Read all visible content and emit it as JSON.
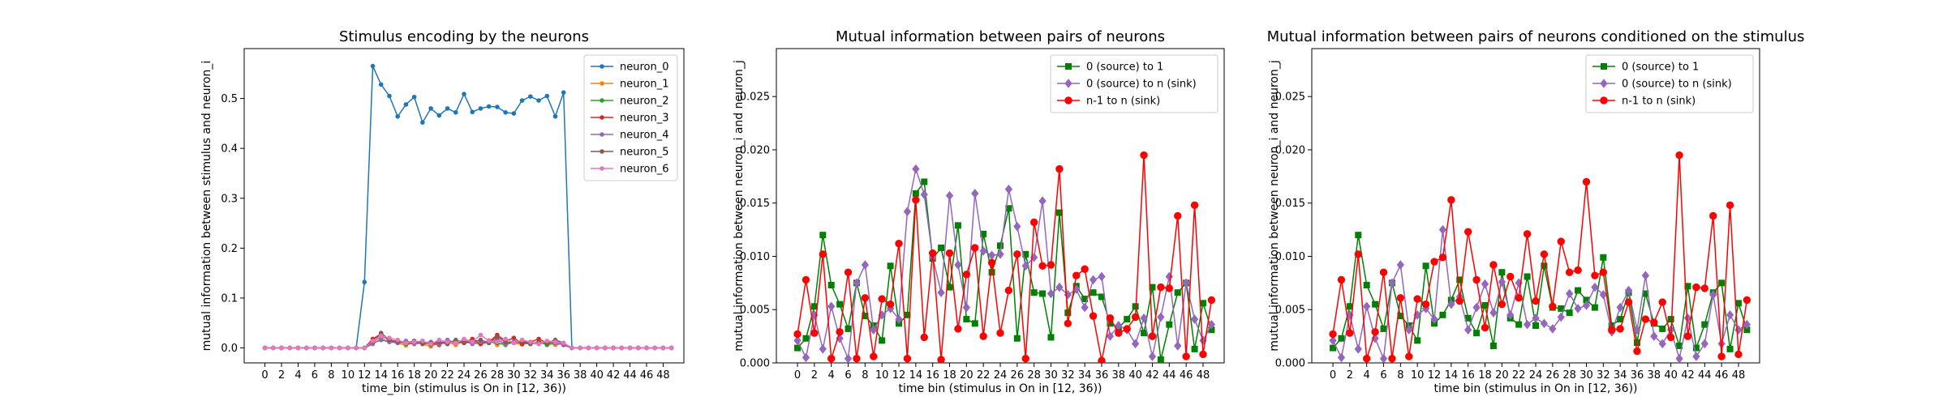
{
  "chart_data": [
    {
      "type": "line",
      "title": "Stimulus encoding by the neurons",
      "xlabel": "time_bin (stimulus is On in [12, 36))",
      "ylabel": "mutual information between stimulus and neuron_i",
      "xlim": [
        -2.5,
        50.5
      ],
      "ylim": [
        -0.03,
        0.6
      ],
      "x_ticks": [
        0,
        2,
        4,
        6,
        8,
        10,
        12,
        14,
        16,
        18,
        20,
        22,
        24,
        26,
        28,
        30,
        32,
        34,
        36,
        38,
        40,
        42,
        44,
        46,
        48
      ],
      "y_ticks": [
        0.0,
        0.1,
        0.2,
        0.3,
        0.4,
        0.5
      ],
      "y_tick_labels": [
        "0.0",
        "0.1",
        "0.2",
        "0.3",
        "0.4",
        "0.5"
      ],
      "x": [
        0,
        1,
        2,
        3,
        4,
        5,
        6,
        7,
        8,
        9,
        10,
        11,
        12,
        13,
        14,
        15,
        16,
        17,
        18,
        19,
        20,
        21,
        22,
        23,
        24,
        25,
        26,
        27,
        28,
        29,
        30,
        31,
        32,
        33,
        34,
        35,
        36,
        37,
        38,
        39,
        40,
        41,
        42,
        43,
        44,
        45,
        46,
        47,
        48,
        49
      ],
      "legend_position": "upper-right",
      "grid": false,
      "series": [
        {
          "name": "neuron_0",
          "color": "#1f77b4",
          "marker": "dot",
          "values": [
            0,
            0,
            0,
            0,
            0,
            0,
            0,
            0,
            0,
            0,
            0,
            0,
            0.132,
            0.565,
            0.528,
            0.505,
            0.464,
            0.488,
            0.503,
            0.452,
            0.48,
            0.466,
            0.48,
            0.472,
            0.509,
            0.473,
            0.48,
            0.484,
            0.483,
            0.472,
            0.47,
            0.496,
            0.504,
            0.496,
            0.505,
            0.464,
            0.512,
            0,
            0,
            0,
            0,
            0,
            0,
            0,
            0,
            0,
            0,
            0,
            0,
            0
          ]
        },
        {
          "name": "neuron_1",
          "color": "#ff7f0e",
          "marker": "dot",
          "values": [
            0,
            0,
            0,
            0,
            0,
            0,
            0,
            0,
            0,
            0,
            0,
            0,
            0,
            0.012,
            0.022,
            0.018,
            0.01,
            0.005,
            0.012,
            0.008,
            0.003,
            0.01,
            0.012,
            0.006,
            0.014,
            0.01,
            0.008,
            0.015,
            0.006,
            0.012,
            0.01,
            0.007,
            0.012,
            0.008,
            0.011,
            0.006,
            0.009,
            0,
            0,
            0,
            0,
            0,
            0,
            0,
            0,
            0,
            0,
            0,
            0,
            0
          ]
        },
        {
          "name": "neuron_2",
          "color": "#2ca02c",
          "marker": "dot",
          "values": [
            0,
            0,
            0,
            0,
            0,
            0,
            0,
            0,
            0,
            0,
            0,
            0,
            0,
            0.01,
            0.016,
            0.012,
            0.015,
            0.008,
            0.01,
            0.014,
            0.006,
            0.012,
            0.008,
            0.016,
            0.01,
            0.012,
            0.008,
            0.014,
            0.01,
            0.006,
            0.012,
            0.01,
            0.008,
            0.012,
            0.006,
            0.01,
            0.008,
            0,
            0,
            0,
            0,
            0,
            0,
            0,
            0,
            0,
            0,
            0,
            0,
            0
          ]
        },
        {
          "name": "neuron_3",
          "color": "#d62728",
          "marker": "dot",
          "values": [
            0,
            0,
            0,
            0,
            0,
            0,
            0,
            0,
            0,
            0,
            0,
            0,
            0,
            0.018,
            0.028,
            0.014,
            0.012,
            0.01,
            0.008,
            0.012,
            0.01,
            0.006,
            0.014,
            0.012,
            0.01,
            0.018,
            0.008,
            0.012,
            0.026,
            0.014,
            0.02,
            0.008,
            0.012,
            0.018,
            0.01,
            0.012,
            0.006,
            0,
            0,
            0,
            0,
            0,
            0,
            0,
            0,
            0,
            0,
            0,
            0,
            0
          ]
        },
        {
          "name": "neuron_4",
          "color": "#9467bd",
          "marker": "dot",
          "values": [
            0,
            0,
            0,
            0,
            0,
            0,
            0,
            0,
            0,
            0,
            0,
            0,
            0,
            0.008,
            0.018,
            0.012,
            0.01,
            0.014,
            0.008,
            0.01,
            0.012,
            0.008,
            0.016,
            0.01,
            0.014,
            0.008,
            0.012,
            0.01,
            0.016,
            0.008,
            0.012,
            0.014,
            0.01,
            0.008,
            0.012,
            0.01,
            0.008,
            0,
            0,
            0,
            0,
            0,
            0,
            0,
            0,
            0,
            0,
            0,
            0,
            0
          ]
        },
        {
          "name": "neuron_5",
          "color": "#8c564b",
          "marker": "dot",
          "values": [
            0,
            0,
            0,
            0,
            0,
            0,
            0,
            0,
            0,
            0,
            0,
            0,
            0,
            0.012,
            0.03,
            0.016,
            0.012,
            0.01,
            0.014,
            0.008,
            0.01,
            0.012,
            0.008,
            0.014,
            0.01,
            0.012,
            0.016,
            0.01,
            0.022,
            0.012,
            0.01,
            0.014,
            0.008,
            0.012,
            0.01,
            0.016,
            0.01,
            0,
            0,
            0,
            0,
            0,
            0,
            0,
            0,
            0,
            0,
            0,
            0,
            0
          ]
        },
        {
          "name": "neuron_6",
          "color": "#e377c2",
          "marker": "dot",
          "values": [
            0,
            0,
            0,
            0,
            0,
            0,
            0,
            0,
            0,
            0,
            0,
            0,
            0,
            0.014,
            0.024,
            0.02,
            0.016,
            0.01,
            0.012,
            0.014,
            0.008,
            0.016,
            0.012,
            0.01,
            0.018,
            0.012,
            0.026,
            0.014,
            0.012,
            0.018,
            0.01,
            0.016,
            0.012,
            0.008,
            0.014,
            0.012,
            0.01,
            0,
            0,
            0,
            0,
            0,
            0,
            0,
            0,
            0,
            0,
            0,
            0,
            0
          ]
        }
      ]
    },
    {
      "type": "line",
      "title": "Mutual information between pairs of neurons",
      "xlabel": "time bin (stimulus in On in [12, 36))",
      "ylabel": "mutual information between neuron_i and neuron_j",
      "xlim": [
        -2.5,
        50.5
      ],
      "ylim": [
        0,
        0.0295
      ],
      "x_ticks": [
        0,
        2,
        4,
        6,
        8,
        10,
        12,
        14,
        16,
        18,
        20,
        22,
        24,
        26,
        28,
        30,
        32,
        34,
        36,
        38,
        40,
        42,
        44,
        46,
        48
      ],
      "y_ticks": [
        0.0,
        0.005,
        0.01,
        0.015,
        0.02,
        0.025
      ],
      "y_tick_labels": [
        "0.000",
        "0.005",
        "0.010",
        "0.015",
        "0.020",
        "0.025"
      ],
      "x": [
        0,
        1,
        2,
        3,
        4,
        5,
        6,
        7,
        8,
        9,
        10,
        11,
        12,
        13,
        14,
        15,
        16,
        17,
        18,
        19,
        20,
        21,
        22,
        23,
        24,
        25,
        26,
        27,
        28,
        29,
        30,
        31,
        32,
        33,
        34,
        35,
        36,
        37,
        38,
        39,
        40,
        41,
        42,
        43,
        44,
        45,
        46,
        47,
        48,
        49
      ],
      "legend_position": "upper-right",
      "grid": false,
      "series": [
        {
          "name": "0 (source) to 1",
          "color": "#008000",
          "marker": "square",
          "values": [
            0.0014,
            0.0023,
            0.0053,
            0.012,
            0.0073,
            0.0055,
            0.0032,
            0.0075,
            0.0044,
            0.0035,
            0.0021,
            0.0091,
            0.0037,
            0.0045,
            0.0159,
            0.017,
            0.0098,
            0.0108,
            0.0071,
            0.0129,
            0.0041,
            0.0037,
            0.0121,
            0.0085,
            0.011,
            0.0145,
            0.0023,
            0.0102,
            0.0066,
            0.0065,
            0.0024,
            0.0141,
            0.0047,
            0.0072,
            0.006,
            0.0066,
            0.0062,
            0.0037,
            0.0033,
            0.0041,
            0.0053,
            0.0028,
            0.0071,
            0.0003,
            0.0036,
            0.0066,
            0.0075,
            0.0013,
            0.0056,
            0.0031
          ]
        },
        {
          "name": "0 (source) to n (sink)",
          "color": "#9467bd",
          "marker": "diamond",
          "values": [
            0.0021,
            0.0005,
            0.0045,
            0.0013,
            0.0053,
            0.0023,
            0.0004,
            0.0075,
            0.0092,
            0.0031,
            0.0045,
            0.0051,
            0.0041,
            0.0142,
            0.0182,
            0.0158,
            0.0099,
            0.0066,
            0.0157,
            0.0092,
            0.0052,
            0.0159,
            0.0105,
            0.0101,
            0.0102,
            0.0163,
            0.0128,
            0.0091,
            0.0099,
            0.0152,
            0.0065,
            0.0071,
            0.0064,
            0.0069,
            0.0052,
            0.0078,
            0.0081,
            0.0025,
            0.0035,
            0.0031,
            0.0018,
            0.0042,
            0.0006,
            0.0043,
            0.0081,
            0.0016,
            0.0075,
            0.0041,
            0.0021,
            0.0036
          ]
        },
        {
          "name": "n-1 to n (sink)",
          "color": "#ff0000",
          "marker": "circle",
          "values": [
            0.0027,
            0.0078,
            0.0028,
            0.0102,
            0.0004,
            0.0029,
            0.0085,
            0.0004,
            0.0061,
            0.0006,
            0.006,
            0.0055,
            0.0112,
            0.0004,
            0.0153,
            0.0024,
            0.0103,
            0.0003,
            0.0103,
            0.0032,
            0.0083,
            0.0108,
            0.0025,
            0.0094,
            0.0028,
            0.0068,
            0.0102,
            0.0004,
            0.0132,
            0.0091,
            0.0092,
            0.0182,
            0.0037,
            0.0082,
            0.0088,
            0.0044,
            0.0002,
            0.0042,
            0.0028,
            0.0032,
            0.0043,
            0.0195,
            0.0025,
            0.0071,
            0.007,
            0.0138,
            0.0006,
            0.0148,
            0.0008,
            0.0059
          ]
        }
      ]
    },
    {
      "type": "line",
      "title": "Mutual information between pairs of neurons conditioned on the stimulus",
      "xlabel": "time bin (stimulus in On in [12, 36))",
      "ylabel": "mutual information between neuron_i and neuron_j",
      "xlim": [
        -2.5,
        50.5
      ],
      "ylim": [
        0,
        0.0295
      ],
      "x_ticks": [
        0,
        2,
        4,
        6,
        8,
        10,
        12,
        14,
        16,
        18,
        20,
        22,
        24,
        26,
        28,
        30,
        32,
        34,
        36,
        38,
        40,
        42,
        44,
        46,
        48
      ],
      "y_ticks": [
        0.0,
        0.005,
        0.01,
        0.015,
        0.02,
        0.025
      ],
      "y_tick_labels": [
        "0.000",
        "0.005",
        "0.010",
        "0.015",
        "0.020",
        "0.025"
      ],
      "x": [
        0,
        1,
        2,
        3,
        4,
        5,
        6,
        7,
        8,
        9,
        10,
        11,
        12,
        13,
        14,
        15,
        16,
        17,
        18,
        19,
        20,
        21,
        22,
        23,
        24,
        25,
        26,
        27,
        28,
        29,
        30,
        31,
        32,
        33,
        34,
        35,
        36,
        37,
        38,
        39,
        40,
        41,
        42,
        43,
        44,
        45,
        46,
        47,
        48,
        49
      ],
      "legend_position": "upper-right",
      "grid": false,
      "series": [
        {
          "name": "0 (source) to 1",
          "color": "#008000",
          "marker": "square",
          "values": [
            0.0014,
            0.0023,
            0.0053,
            0.012,
            0.0073,
            0.0055,
            0.0032,
            0.0075,
            0.0044,
            0.0035,
            0.0021,
            0.0091,
            0.0037,
            0.0045,
            0.0059,
            0.0078,
            0.0042,
            0.0028,
            0.0054,
            0.0016,
            0.0085,
            0.0042,
            0.0036,
            0.0081,
            0.0035,
            0.0091,
            0.0052,
            0.0051,
            0.0047,
            0.0068,
            0.0059,
            0.0052,
            0.0099,
            0.0035,
            0.0041,
            0.0066,
            0.0019,
            0.0065,
            0.0037,
            0.0032,
            0.0041,
            0.0016,
            0.0072,
            0.0014,
            0.0036,
            0.0066,
            0.0075,
            0.0013,
            0.0056,
            0.0031
          ]
        },
        {
          "name": "0 (source) to n (sink)",
          "color": "#9467bd",
          "marker": "diamond",
          "values": [
            0.0021,
            0.0005,
            0.0045,
            0.0013,
            0.0053,
            0.0023,
            0.0004,
            0.0075,
            0.0092,
            0.0031,
            0.0045,
            0.0051,
            0.0041,
            0.0125,
            0.0055,
            0.0062,
            0.0031,
            0.0052,
            0.0074,
            0.0047,
            0.0076,
            0.0045,
            0.0075,
            0.0036,
            0.0042,
            0.0037,
            0.0032,
            0.0043,
            0.0065,
            0.0051,
            0.0054,
            0.0071,
            0.0064,
            0.0029,
            0.0052,
            0.0068,
            0.0031,
            0.0082,
            0.0025,
            0.0018,
            0.0031,
            0.0004,
            0.0042,
            0.0006,
            0.0018,
            0.0064,
            0.0018,
            0.0045,
            0.0031,
            0.0036
          ]
        },
        {
          "name": "n-1 to n (sink)",
          "color": "#ff0000",
          "marker": "circle",
          "values": [
            0.0027,
            0.0078,
            0.0028,
            0.0102,
            0.0004,
            0.0029,
            0.0085,
            0.0004,
            0.0061,
            0.0006,
            0.006,
            0.0055,
            0.0095,
            0.0099,
            0.0153,
            0.0058,
            0.0123,
            0.0078,
            0.0033,
            0.0092,
            0.0055,
            0.0081,
            0.0061,
            0.0121,
            0.0058,
            0.0102,
            0.0053,
            0.0114,
            0.0085,
            0.0087,
            0.017,
            0.0082,
            0.0085,
            0.0031,
            0.0032,
            0.0057,
            0.0011,
            0.0041,
            0.0038,
            0.0057,
            0.0024,
            0.0195,
            0.0025,
            0.0071,
            0.007,
            0.0138,
            0.0006,
            0.0148,
            0.0008,
            0.0059
          ]
        }
      ]
    }
  ]
}
